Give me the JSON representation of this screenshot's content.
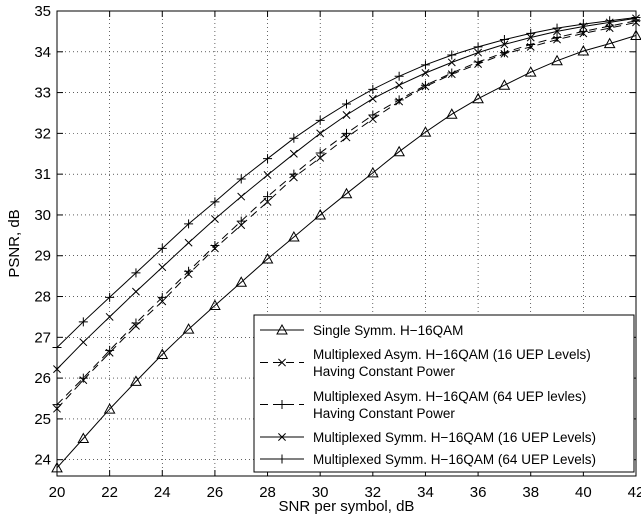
{
  "chart_data": {
    "type": "line",
    "title": "",
    "xlabel": "SNR per symbol,  dB",
    "ylabel": "PSNR,  dB",
    "xlim": [
      20,
      42
    ],
    "ylim": [
      23.6,
      35
    ],
    "xticks": [
      20,
      22,
      24,
      26,
      28,
      30,
      32,
      34,
      36,
      38,
      40,
      42
    ],
    "yticks": [
      24,
      25,
      26,
      27,
      28,
      29,
      30,
      31,
      32,
      33,
      34,
      35
    ],
    "grid": true,
    "legend_position": "bottom-right",
    "x": [
      20,
      21,
      22,
      23,
      24,
      25,
      26,
      27,
      28,
      29,
      30,
      31,
      32,
      33,
      34,
      35,
      36,
      37,
      38,
      39,
      40,
      41,
      42
    ],
    "series": [
      {
        "name": "Single Symm. H−16QAM",
        "line": "solid",
        "marker": "triangle",
        "values": [
          23.8,
          24.52,
          25.24,
          25.92,
          26.58,
          27.2,
          27.78,
          28.35,
          28.92,
          29.46,
          30.0,
          30.52,
          31.03,
          31.55,
          32.03,
          32.47,
          32.85,
          33.18,
          33.5,
          33.78,
          34.02,
          34.2,
          34.4
        ]
      },
      {
        "name": "Multiplexed Asym. H−16QAM (16 UEP Levels)",
        "name_line2": "Having Constant Power",
        "line": "dashed",
        "marker": "x",
        "values": [
          25.25,
          25.95,
          26.62,
          27.28,
          27.88,
          28.55,
          29.18,
          29.75,
          30.32,
          30.92,
          31.4,
          31.9,
          32.35,
          32.78,
          33.15,
          33.45,
          33.7,
          33.95,
          34.12,
          34.3,
          34.45,
          34.58,
          34.72
        ]
      },
      {
        "name": "Multiplexed Asym. H−16QAM (64 UEP levles)",
        "name_line2": "Having Constant Power",
        "line": "dashed",
        "marker": "plus",
        "values": [
          25.35,
          26.0,
          26.68,
          27.35,
          27.98,
          28.62,
          29.25,
          29.85,
          30.45,
          31.0,
          31.52,
          32.0,
          32.45,
          32.82,
          33.18,
          33.48,
          33.75,
          33.98,
          34.18,
          34.35,
          34.5,
          34.63,
          34.76
        ]
      },
      {
        "name": "Multiplexed Symm. H−16QAM (16 UEP Levels)",
        "line": "solid",
        "marker": "x",
        "values": [
          26.22,
          26.88,
          27.5,
          28.12,
          28.72,
          29.32,
          29.9,
          30.45,
          30.98,
          31.5,
          32.0,
          32.45,
          32.85,
          33.18,
          33.48,
          33.74,
          33.98,
          34.18,
          34.35,
          34.5,
          34.62,
          34.72,
          34.82
        ]
      },
      {
        "name": "Multiplexed Symm. H−16QAM (64 UEP Levels)",
        "line": "solid",
        "marker": "plus",
        "values": [
          26.75,
          27.38,
          27.98,
          28.58,
          29.18,
          29.78,
          30.32,
          30.88,
          31.38,
          31.88,
          32.32,
          32.72,
          33.08,
          33.4,
          33.68,
          33.92,
          34.12,
          34.3,
          34.45,
          34.58,
          34.68,
          34.76,
          34.84
        ]
      }
    ]
  }
}
